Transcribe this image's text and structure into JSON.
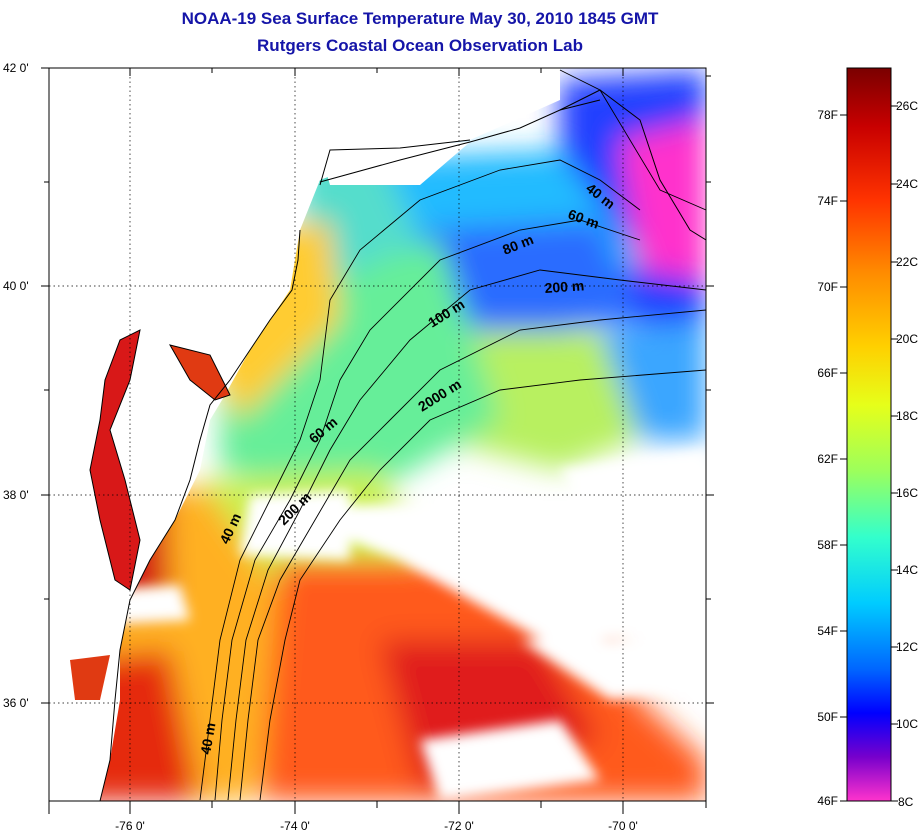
{
  "title": {
    "line1": "NOAA-19 Sea Surface Temperature May 30, 2010 1845 GMT",
    "line2": "Rutgers Coastal Ocean Observation Lab"
  },
  "map": {
    "lat_ticks": [
      "42 0'",
      "40 0'",
      "38 0'",
      "36 0'"
    ],
    "lon_ticks": [
      "-76 0'",
      "-74 0'",
      "-72 0'",
      "-70 0'"
    ],
    "lat_range": [
      35.0,
      42.0
    ],
    "lon_range": [
      -77.0,
      -69.0
    ],
    "grid": "dotted",
    "isobath_labels": [
      "40 m",
      "60 m",
      "80 m",
      "200 m",
      "100 m",
      "2000 m",
      "60 m",
      "200 m",
      "40 m",
      "40 m"
    ],
    "colors": {
      "land": "#ffffff",
      "cloud": "#ffffff",
      "coastline": "#000000"
    }
  },
  "colorbar": {
    "fahrenheit_labels": [
      "78F",
      "74F",
      "70F",
      "66F",
      "62F",
      "58F",
      "54F",
      "50F",
      "46F"
    ],
    "celsius_labels": [
      "26C",
      "24C",
      "22C",
      "20C",
      "18C",
      "16C",
      "14C",
      "12C",
      "10C",
      "8C"
    ],
    "range_celsius": [
      8,
      27
    ],
    "gradient": [
      "#7a0000",
      "#c80000",
      "#ff3300",
      "#ff8c00",
      "#ffd000",
      "#e6ff1a",
      "#9cff5c",
      "#33ffcc",
      "#00ccff",
      "#0066ff",
      "#0000ff",
      "#7700cc",
      "#ff33cc"
    ]
  }
}
